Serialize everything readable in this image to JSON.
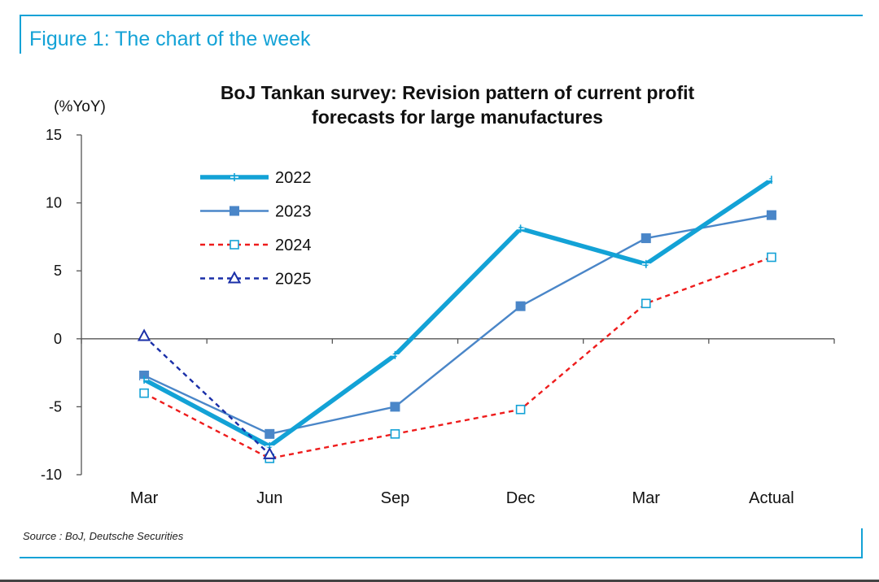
{
  "figure": {
    "title": "Figure 1: The chart of the week",
    "source": "Source : BoJ, Deutsche Securities"
  },
  "chart_data": {
    "type": "line",
    "title": "BoJ Tankan survey: Revision pattern of current profit forecasts for large manufactures",
    "title_lines": [
      "BoJ Tankan survey: Revision pattern of current profit",
      "forecasts for large manufactures"
    ],
    "ylabel": "(%YoY)",
    "xlabel": "",
    "categories": [
      "Mar",
      "Jun",
      "Sep",
      "Dec",
      "Mar",
      "Actual"
    ],
    "ylim": [
      -10,
      15
    ],
    "yticks": [
      -10,
      -5,
      0,
      5,
      10,
      15
    ],
    "grid": false,
    "legend_position": "top-left",
    "series": [
      {
        "name": "2022",
        "color": "#13a2d6",
        "style": "solid-thick",
        "marker": "plus",
        "values": [
          -3.0,
          -7.9,
          -1.2,
          8.1,
          5.5,
          11.7
        ]
      },
      {
        "name": "2023",
        "color": "#4a86c8",
        "style": "solid",
        "marker": "square-filled",
        "values": [
          -2.7,
          -7.0,
          -5.0,
          2.4,
          7.4,
          9.1
        ]
      },
      {
        "name": "2024",
        "color": "#ee1c1c",
        "style": "dashed",
        "marker": "square-open",
        "values": [
          -4.0,
          -8.8,
          -7.0,
          -5.2,
          2.6,
          6.0
        ]
      },
      {
        "name": "2025",
        "color": "#1a2fa8",
        "style": "dashed",
        "marker": "triangle-open",
        "values": [
          0.2,
          -8.5,
          null,
          null,
          null,
          null
        ]
      }
    ]
  }
}
